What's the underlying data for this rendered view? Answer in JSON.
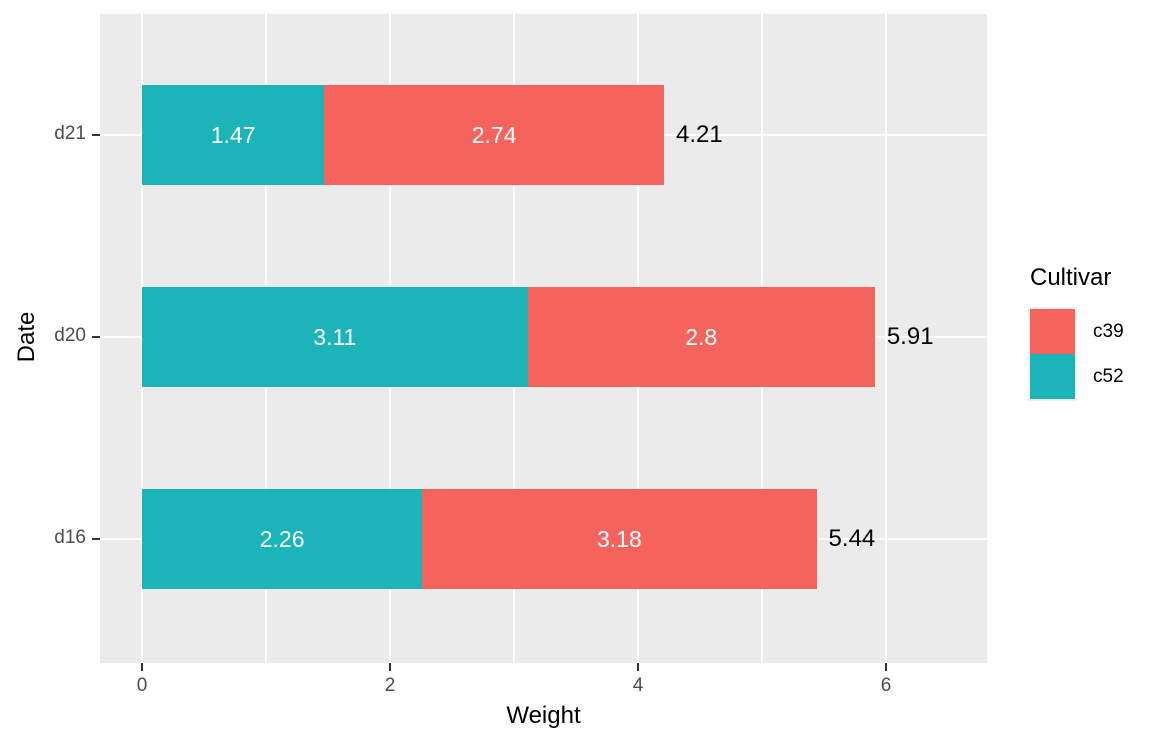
{
  "chart_data": {
    "type": "bar",
    "orientation": "horizontal-stacked",
    "title": "",
    "xlabel": "Weight",
    "ylabel": "Date",
    "x_ticks": [
      {
        "value": 0,
        "label": "0"
      },
      {
        "value": 2,
        "label": "2"
      },
      {
        "value": 4,
        "label": "4"
      },
      {
        "value": 6,
        "label": "6"
      }
    ],
    "x_minor_values": [
      1,
      3,
      5
    ],
    "xlim": [
      -0.34,
      6.82
    ],
    "categories": [
      "d21",
      "d20",
      "d16"
    ],
    "series": [
      {
        "name": "c39",
        "color": "#F4645D",
        "values": [
          2.74,
          2.8,
          3.18
        ]
      },
      {
        "name": "c52",
        "color": "#1BB5B9",
        "values": [
          1.47,
          3.11,
          2.26
        ]
      }
    ],
    "stack_order": [
      "c52",
      "c39"
    ],
    "bars": [
      {
        "category": "d21",
        "segments": [
          {
            "series": "c52",
            "value": 1.47,
            "label": "1.47"
          },
          {
            "series": "c39",
            "value": 2.74,
            "label": "2.74"
          }
        ],
        "total": 4.21,
        "total_label": "4.21"
      },
      {
        "category": "d20",
        "segments": [
          {
            "series": "c52",
            "value": 3.11,
            "label": "3.11"
          },
          {
            "series": "c39",
            "value": 2.8,
            "label": "2.8"
          }
        ],
        "total": 5.91,
        "total_label": "5.91"
      },
      {
        "category": "d16",
        "segments": [
          {
            "series": "c52",
            "value": 2.26,
            "label": "2.26"
          },
          {
            "series": "c39",
            "value": 3.18,
            "label": "3.18"
          }
        ],
        "total": 5.44,
        "total_label": "5.44"
      }
    ],
    "grid": true,
    "legend_position": "right"
  },
  "legend": {
    "title": "Cultivar",
    "items": [
      {
        "label": "c39",
        "color": "#F4645D"
      },
      {
        "label": "c52",
        "color": "#1BB5B9"
      }
    ]
  },
  "colors": {
    "panel_bg": "#EBEBEB",
    "grid": "#FFFFFF",
    "tick": "#333333",
    "tick_label": "#4D4D4D",
    "axis_title": "#000000",
    "bar_value_label": "#FFFFFF",
    "total_label": "#000000"
  }
}
